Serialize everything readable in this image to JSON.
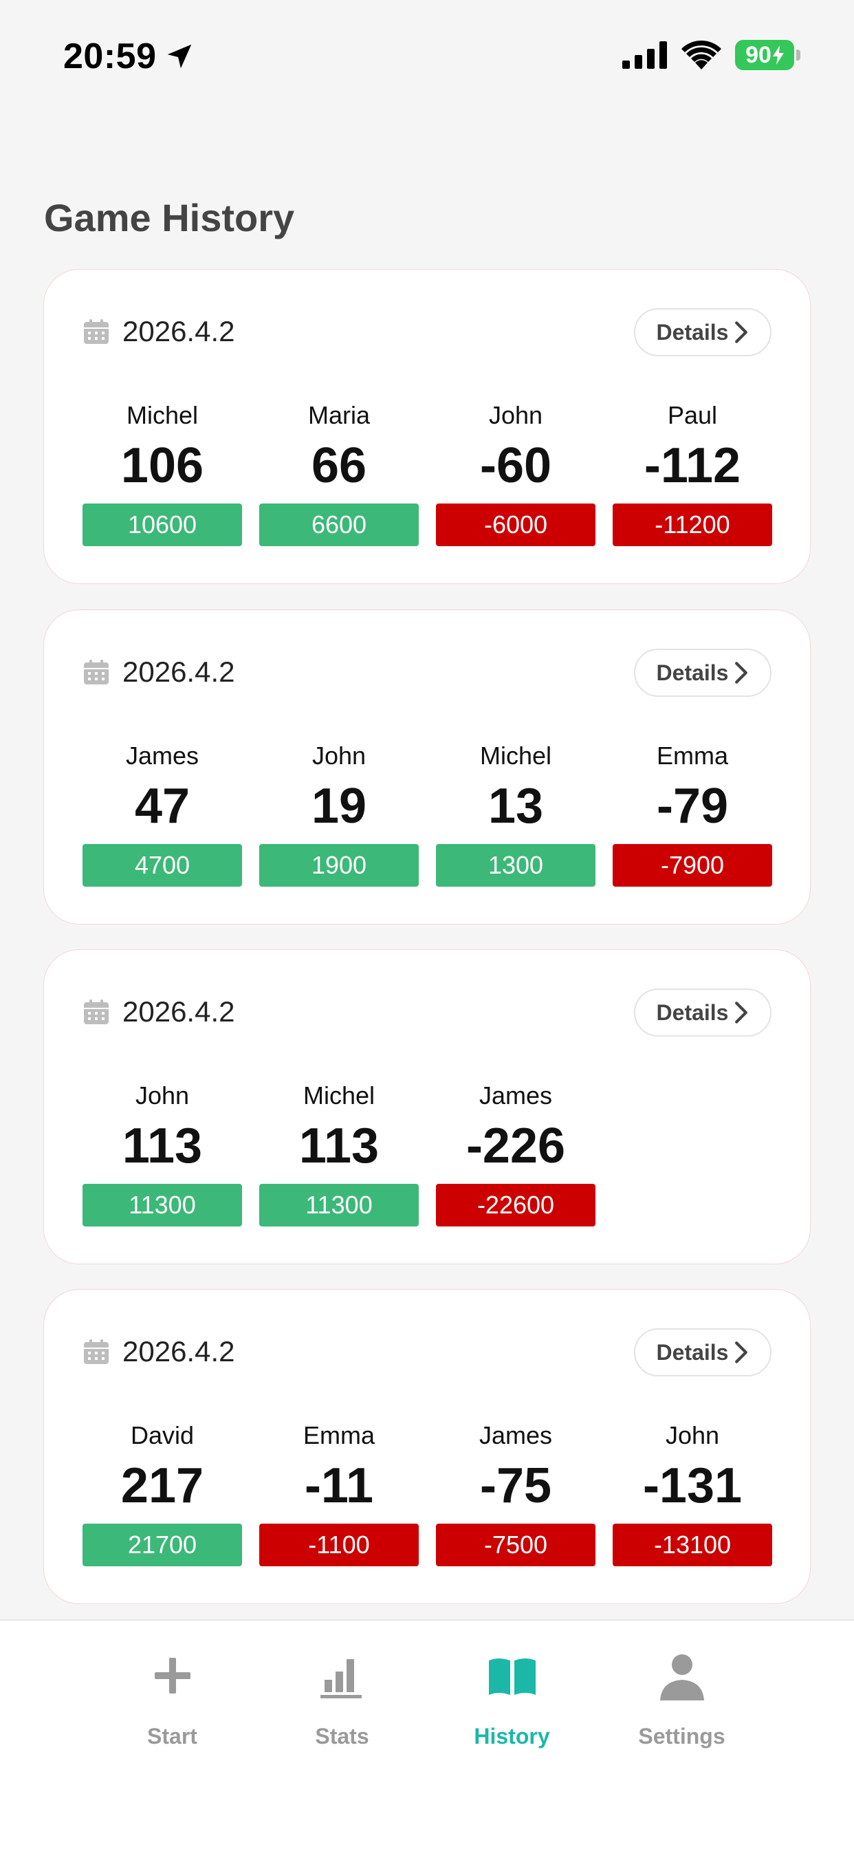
{
  "status": {
    "time": "20:59",
    "battery": "90"
  },
  "title": "Game History",
  "details_label": "Details",
  "colors": {
    "positive": "#3cb878",
    "negative": "#cc0000",
    "accent": "#1bb8a8"
  },
  "games": [
    {
      "date": "2026.4.2",
      "players": [
        {
          "name": "Michel",
          "score": "106",
          "amount": "10600"
        },
        {
          "name": "Maria",
          "score": "66",
          "amount": "6600"
        },
        {
          "name": "John",
          "score": "-60",
          "amount": "-6000"
        },
        {
          "name": "Paul",
          "score": "-112",
          "amount": "-11200"
        }
      ]
    },
    {
      "date": "2026.4.2",
      "players": [
        {
          "name": "James",
          "score": "47",
          "amount": "4700"
        },
        {
          "name": "John",
          "score": "19",
          "amount": "1900"
        },
        {
          "name": "Michel",
          "score": "13",
          "amount": "1300"
        },
        {
          "name": "Emma",
          "score": "-79",
          "amount": "-7900"
        }
      ]
    },
    {
      "date": "2026.4.2",
      "players": [
        {
          "name": "John",
          "score": "113",
          "amount": "11300"
        },
        {
          "name": "Michel",
          "score": "113",
          "amount": "11300"
        },
        {
          "name": "James",
          "score": "-226",
          "amount": "-22600"
        }
      ]
    },
    {
      "date": "2026.4.2",
      "players": [
        {
          "name": "David",
          "score": "217",
          "amount": "21700"
        },
        {
          "name": "Emma",
          "score": "-11",
          "amount": "-1100"
        },
        {
          "name": "James",
          "score": "-75",
          "amount": "-7500"
        },
        {
          "name": "John",
          "score": "-131",
          "amount": "-13100"
        }
      ]
    }
  ],
  "tabs": [
    {
      "label": "Start",
      "icon": "plus-icon"
    },
    {
      "label": "Stats",
      "icon": "bar-chart-icon"
    },
    {
      "label": "History",
      "icon": "book-icon",
      "active": true
    },
    {
      "label": "Settings",
      "icon": "person-icon"
    }
  ]
}
